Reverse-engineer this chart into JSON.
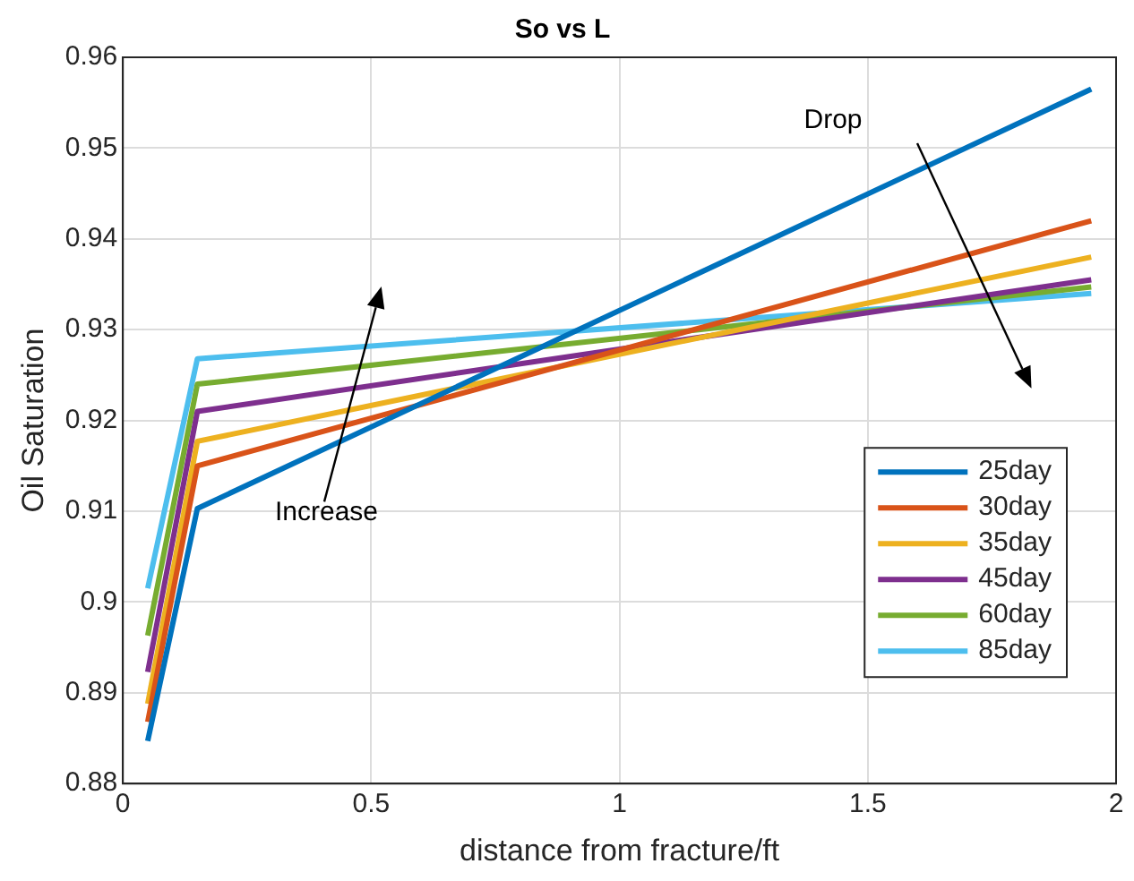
{
  "chart_data": {
    "type": "line",
    "title": "So vs L",
    "xlabel": "distance from fracture/ft",
    "ylabel": "Oil Saturation",
    "x": [
      0.05,
      0.15,
      1.95
    ],
    "series": [
      {
        "name": "25day",
        "color": "#0072bd",
        "values": [
          0.8847,
          0.9103,
          0.9565
        ]
      },
      {
        "name": "30day",
        "color": "#d95319",
        "values": [
          0.8868,
          0.915,
          0.942
        ]
      },
      {
        "name": "35day",
        "color": "#edb120",
        "values": [
          0.8888,
          0.9177,
          0.938
        ]
      },
      {
        "name": "45day",
        "color": "#7e2f8e",
        "values": [
          0.8923,
          0.921,
          0.9355
        ]
      },
      {
        "name": "60day",
        "color": "#77ac30",
        "values": [
          0.8963,
          0.924,
          0.9347
        ]
      },
      {
        "name": "85day",
        "color": "#4dbeee",
        "values": [
          0.9015,
          0.9268,
          0.934
        ]
      }
    ],
    "xlim": [
      0,
      2
    ],
    "xticks": [
      0,
      0.5,
      1,
      1.5,
      2
    ],
    "ylim": [
      0.88,
      0.96
    ],
    "yticks": [
      0.88,
      0.89,
      0.9,
      0.91,
      0.92,
      0.93,
      0.94,
      0.95,
      0.96
    ],
    "grid": true,
    "legend": "bottom right",
    "marker": "none",
    "line_style": "solid",
    "annotations": [
      "Increase",
      "Drop"
    ]
  }
}
